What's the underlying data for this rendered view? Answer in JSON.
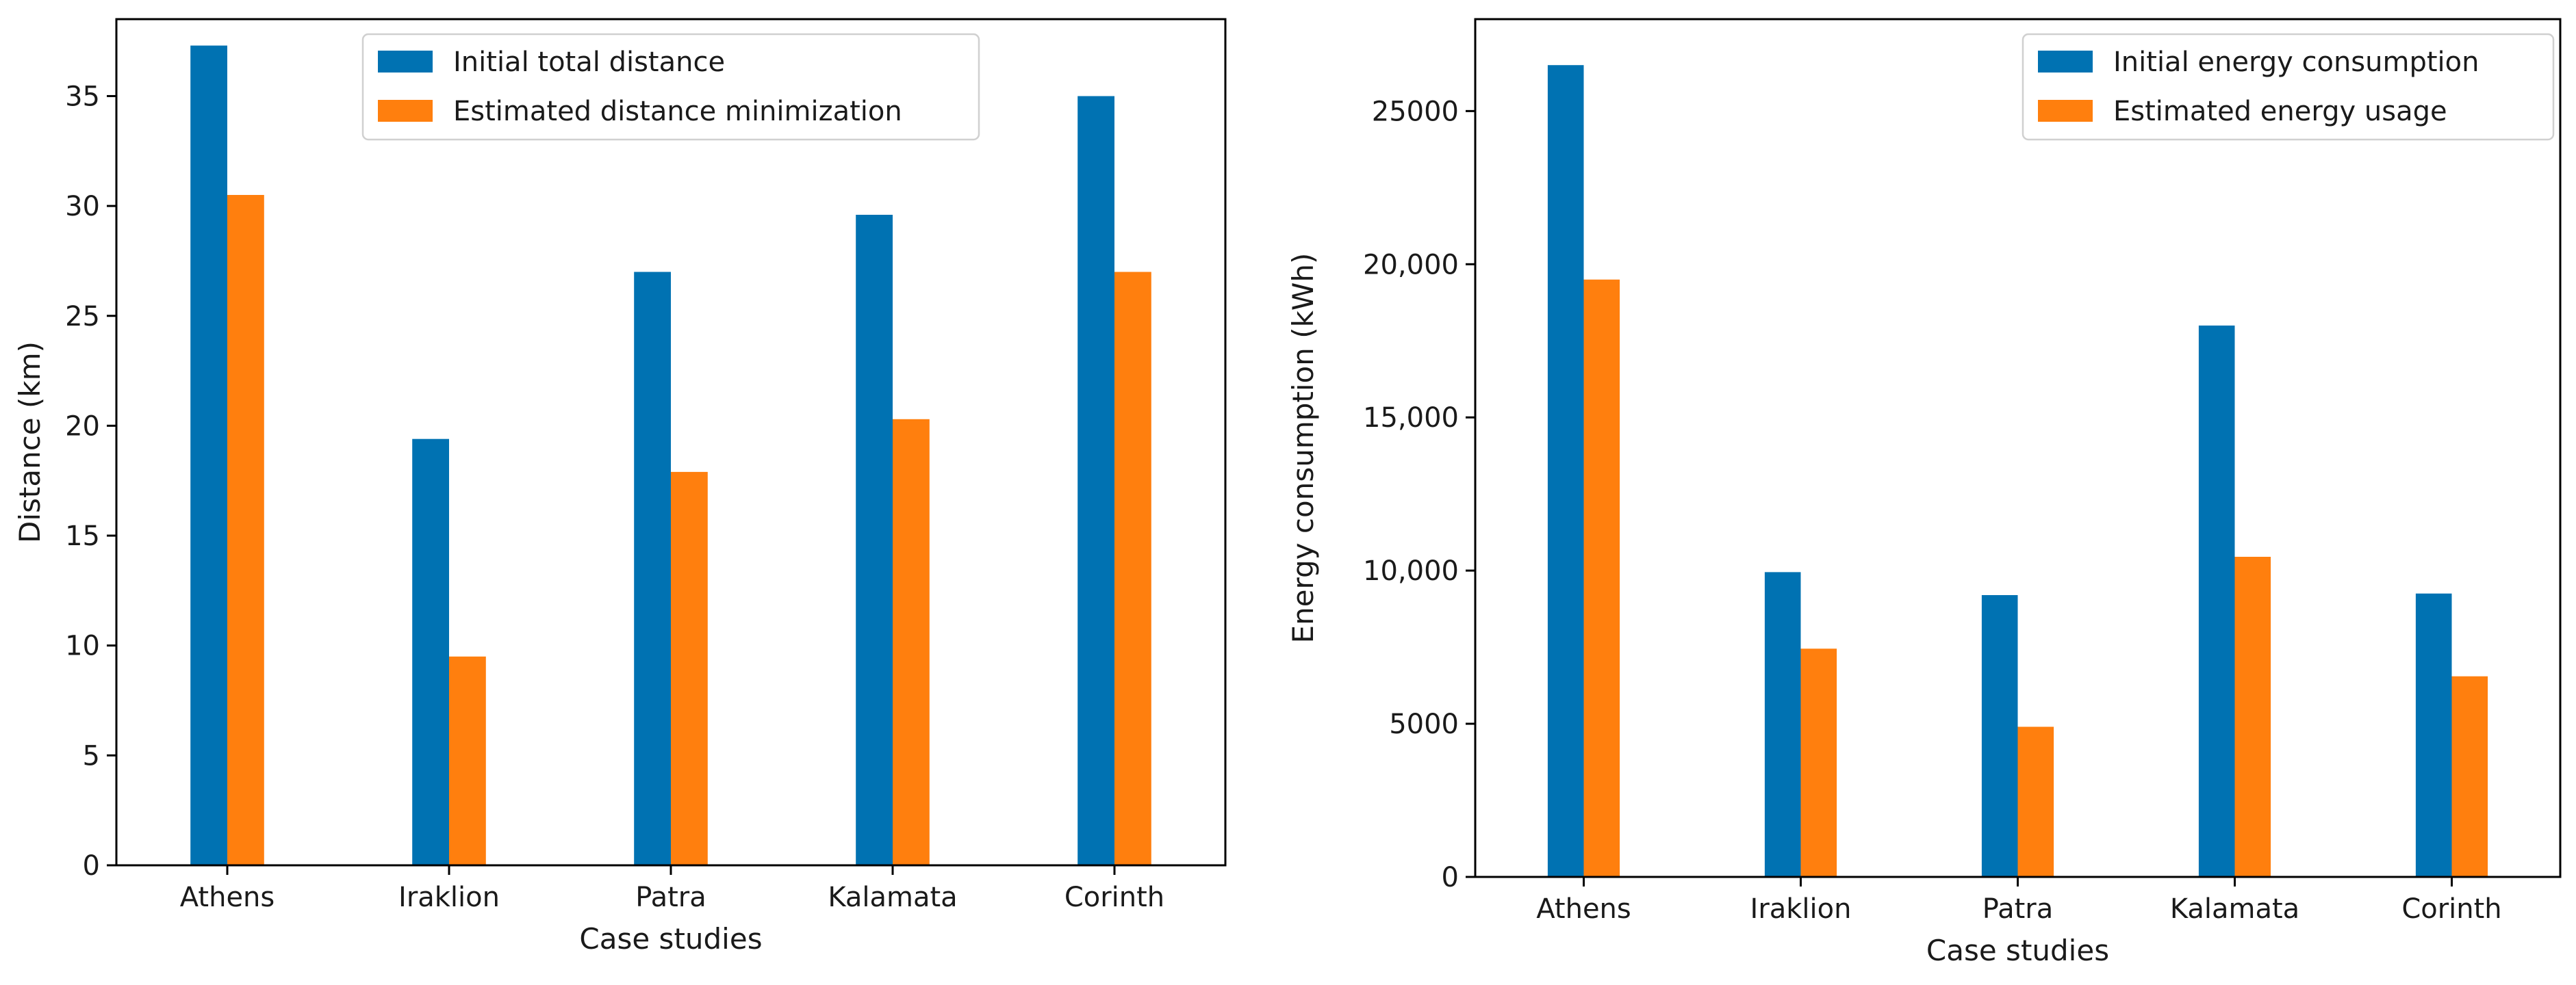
{
  "colors": {
    "series1": "#0072b2",
    "series2": "#ff7f0e",
    "axis": "#000000"
  },
  "chart_data": [
    {
      "type": "bar",
      "categories": [
        "Athens",
        "Iraklion",
        "Patra",
        "Kalamata",
        "Corinth"
      ],
      "series": [
        {
          "name": "Initial total distance",
          "values": [
            37.3,
            19.4,
            27.0,
            29.6,
            35.0
          ]
        },
        {
          "name": "Estimated distance minimization",
          "values": [
            30.5,
            9.5,
            17.9,
            20.3,
            27.0
          ]
        }
      ],
      "title": "",
      "xlabel": "Case studies",
      "ylabel": "Distance (km)",
      "ylim": [
        0,
        38.5
      ],
      "yticks": [
        0,
        5,
        10,
        15,
        20,
        25,
        30,
        35
      ],
      "ytick_labels": [
        "0",
        "5",
        "10",
        "15",
        "20",
        "25",
        "30",
        "35"
      ],
      "legend_position": "top-center"
    },
    {
      "type": "bar",
      "categories": [
        "Athens",
        "Iraklion",
        "Patra",
        "Kalamata",
        "Corinth"
      ],
      "series": [
        {
          "name": "Initial energy consumption",
          "values": [
            26500,
            9950,
            9200,
            18000,
            9250
          ]
        },
        {
          "name": "Estimated energy usage",
          "values": [
            19500,
            7450,
            4900,
            10450,
            6550
          ]
        }
      ],
      "title": "",
      "xlabel": "Case studies",
      "ylabel": "Energy consumption (kWh)",
      "ylim": [
        0,
        28000
      ],
      "yticks": [
        0,
        5000,
        10000,
        15000,
        20000,
        25000
      ],
      "ytick_labels": [
        "0",
        "5000",
        "10,000",
        "15,000",
        "20,000",
        "25000"
      ],
      "legend_position": "top-right"
    }
  ]
}
